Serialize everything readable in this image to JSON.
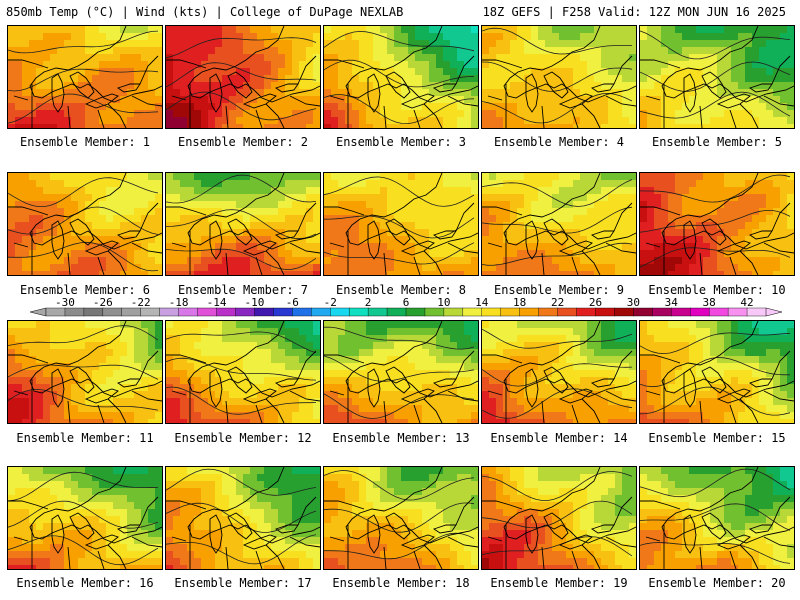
{
  "header": {
    "left": "850mb Temp (°C) | Wind (kts) | College of DuPage NEXLAB",
    "right": "18Z GEFS | F258 Valid: 12Z MON JUN 16 2025"
  },
  "colorbar": {
    "labels": [
      "-30",
      "-26",
      "-22",
      "-18",
      "-14",
      "-10",
      "-6",
      "-2",
      "2",
      "6",
      "10",
      "14",
      "18",
      "22",
      "26",
      "30",
      "34",
      "38",
      "42"
    ],
    "colors": [
      "#a8a8a8",
      "#8c8c8c",
      "#787878",
      "#909090",
      "#a0a0a0",
      "#b4b4b4",
      "#c8a0e0",
      "#d878e8",
      "#e050d8",
      "#b830c8",
      "#8828c0",
      "#4018b0",
      "#2838d0",
      "#2070e8",
      "#20a8f0",
      "#18d8f0",
      "#10e0c0",
      "#10c890",
      "#10b058",
      "#28a030",
      "#70c030",
      "#b8d838",
      "#f0f040",
      "#f8e020",
      "#f8c010",
      "#f8a000",
      "#f07818",
      "#e85020",
      "#e02020",
      "#c81010",
      "#a00808",
      "#900030",
      "#a80060",
      "#c80090",
      "#e000c0",
      "#f048e0",
      "#f890f0",
      "#f8c8f8"
    ]
  },
  "members": [
    {
      "label": "Ensemble Member: 1",
      "mean": 17,
      "grad": [
        -2,
        4
      ],
      "wave": 0
    },
    {
      "label": "Ensemble Member: 2",
      "mean": 20,
      "grad": [
        -6,
        1
      ],
      "wave": 1
    },
    {
      "label": "Ensemble Member: 3",
      "mean": 11,
      "grad": [
        -7,
        5
      ],
      "wave": 2
    },
    {
      "label": "Ensemble Member: 4",
      "mean": 13,
      "grad": [
        -3,
        3
      ],
      "wave": 3
    },
    {
      "label": "Ensemble Member: 5",
      "mean": 9,
      "grad": [
        -3,
        4
      ],
      "wave": 4
    },
    {
      "label": "Ensemble Member: 6",
      "mean": 16,
      "grad": [
        -3,
        3
      ],
      "wave": 5
    },
    {
      "label": "Ensemble Member: 7",
      "mean": 14,
      "grad": [
        0,
        8
      ],
      "wave": 6
    },
    {
      "label": "Ensemble Member: 8",
      "mean": 15,
      "grad": [
        -2,
        3
      ],
      "wave": 7
    },
    {
      "label": "Ensemble Member: 9",
      "mean": 14,
      "grad": [
        -2,
        4
      ],
      "wave": 8
    },
    {
      "label": "Ensemble Member: 10",
      "mean": 19,
      "grad": [
        -5,
        2
      ],
      "wave": 9
    },
    {
      "label": "Ensemble Member: 11",
      "mean": 15,
      "grad": [
        -5,
        4
      ],
      "wave": 10
    },
    {
      "label": "Ensemble Member: 12",
      "mean": 13,
      "grad": [
        -5,
        6
      ],
      "wave": 11
    },
    {
      "label": "Ensemble Member: 13",
      "mean": 12,
      "grad": [
        -2,
        7
      ],
      "wave": 12
    },
    {
      "label": "Ensemble Member: 14",
      "mean": 14,
      "grad": [
        -4,
        6
      ],
      "wave": 13
    },
    {
      "label": "Ensemble Member: 15",
      "mean": 12,
      "grad": [
        -6,
        5
      ],
      "wave": 14
    },
    {
      "label": "Ensemble Member: 16",
      "mean": 12,
      "grad": [
        -4,
        6
      ],
      "wave": 15
    },
    {
      "label": "Ensemble Member: 17",
      "mean": 12,
      "grad": [
        -6,
        4
      ],
      "wave": 16
    },
    {
      "label": "Ensemble Member: 18",
      "mean": 13,
      "grad": [
        -4,
        5
      ],
      "wave": 17
    },
    {
      "label": "Ensemble Member: 19",
      "mean": 15,
      "grad": [
        -6,
        5
      ],
      "wave": 18
    },
    {
      "label": "Ensemble Member: 20",
      "mean": 11,
      "grad": [
        -4,
        6
      ],
      "wave": 19
    }
  ]
}
